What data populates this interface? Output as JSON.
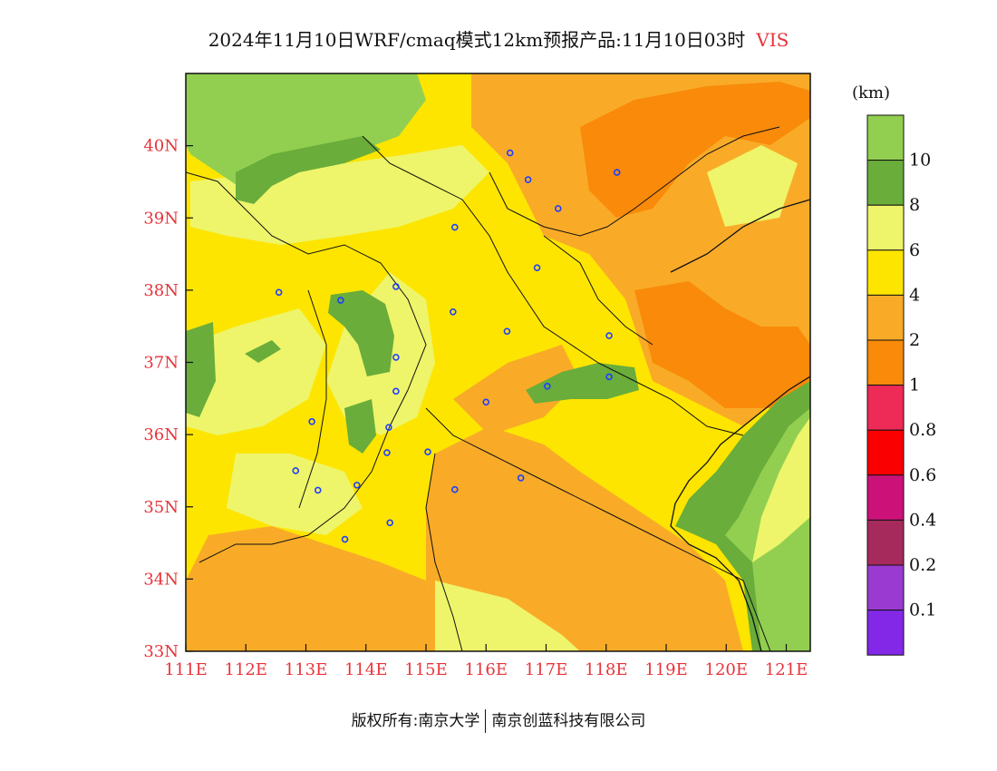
{
  "title": {
    "text": "2024年11月10日WRF/cmaq模式12km预报产品:11月10日03时",
    "variable": "VIS"
  },
  "axes": {
    "lon_ticks": [
      "111E",
      "112E",
      "113E",
      "114E",
      "115E",
      "116E",
      "117E",
      "118E",
      "119E",
      "120E",
      "121E"
    ],
    "lat_ticks": [
      "40N",
      "39N",
      "38N",
      "37N",
      "36N",
      "35N",
      "34N",
      "33N"
    ],
    "lon_range": [
      111,
      121.4
    ],
    "lat_range": [
      33,
      41
    ],
    "tick_color": "#e8333a"
  },
  "legend": {
    "unit": "(km)",
    "labels": [
      "10",
      "8",
      "6",
      "4",
      "2",
      "1",
      "0.8",
      "0.6",
      "0.4",
      "0.2",
      "0.1"
    ],
    "colors": [
      "#92cf50",
      "#6aad3a",
      "#eef56a",
      "#fde500",
      "#f9ab28",
      "#f98a0a",
      "#ee2a56",
      "#fa0000",
      "#cc1278",
      "#a62a5c",
      "#9a3ad0",
      "#8228e6"
    ]
  },
  "map": {
    "stations": [
      {
        "lon": 116.4,
        "lat": 39.9
      },
      {
        "lon": 116.7,
        "lat": 39.53
      },
      {
        "lon": 117.2,
        "lat": 39.13
      },
      {
        "lon": 118.18,
        "lat": 39.63
      },
      {
        "lon": 115.48,
        "lat": 38.87
      },
      {
        "lon": 116.85,
        "lat": 38.31
      },
      {
        "lon": 112.55,
        "lat": 37.97
      },
      {
        "lon": 113.58,
        "lat": 37.86
      },
      {
        "lon": 114.5,
        "lat": 38.05
      },
      {
        "lon": 115.45,
        "lat": 37.7
      },
      {
        "lon": 116.35,
        "lat": 37.43
      },
      {
        "lon": 118.05,
        "lat": 37.37
      },
      {
        "lon": 114.5,
        "lat": 37.07
      },
      {
        "lon": 114.5,
        "lat": 36.6
      },
      {
        "lon": 117.02,
        "lat": 36.67
      },
      {
        "lon": 118.05,
        "lat": 36.8
      },
      {
        "lon": 116.0,
        "lat": 36.45
      },
      {
        "lon": 113.1,
        "lat": 36.18
      },
      {
        "lon": 114.38,
        "lat": 36.1
      },
      {
        "lon": 114.35,
        "lat": 35.75
      },
      {
        "lon": 115.03,
        "lat": 35.76
      },
      {
        "lon": 112.83,
        "lat": 35.5
      },
      {
        "lon": 113.2,
        "lat": 35.23
      },
      {
        "lon": 113.85,
        "lat": 35.3
      },
      {
        "lon": 115.48,
        "lat": 35.24
      },
      {
        "lon": 116.58,
        "lat": 35.4
      },
      {
        "lon": 114.4,
        "lat": 34.78
      },
      {
        "lon": 113.65,
        "lat": 34.55
      }
    ]
  },
  "footer": {
    "copyright": "版权所有:南京大学",
    "company": "南京创蓝科技有限公司"
  }
}
